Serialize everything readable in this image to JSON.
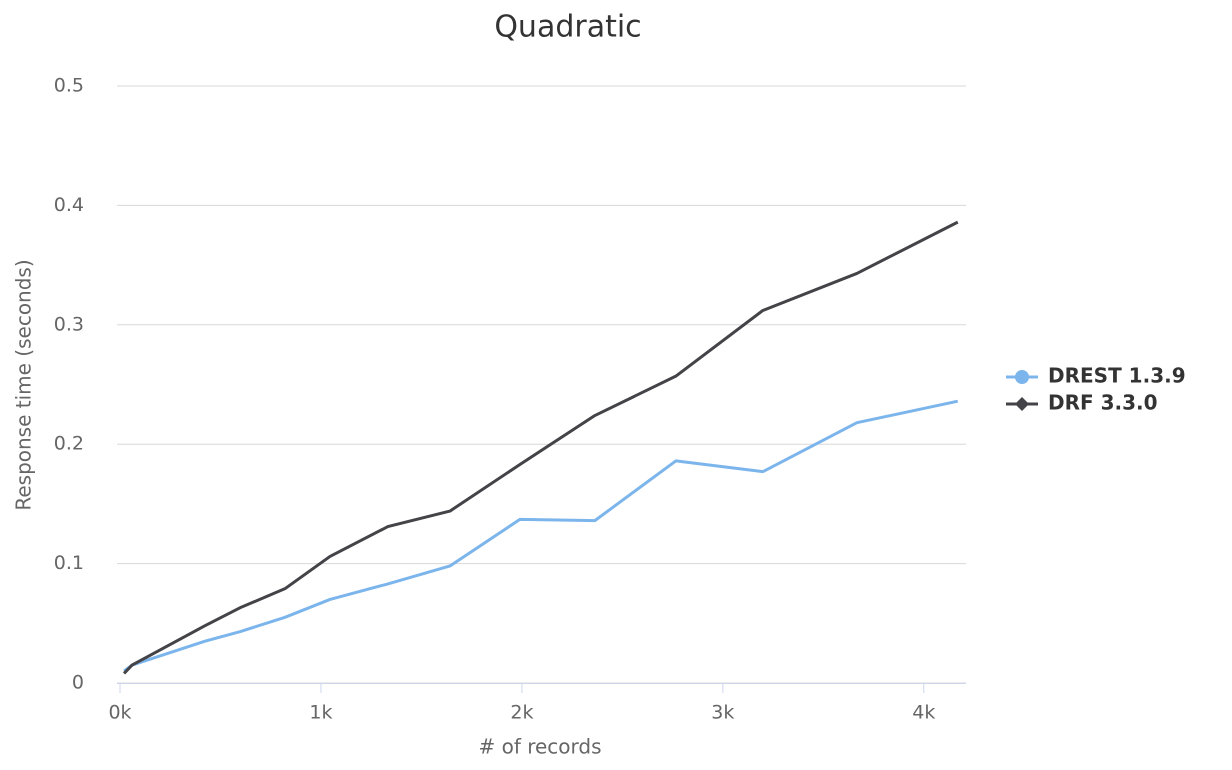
{
  "chart_data": {
    "type": "line",
    "title": "Quadratic",
    "x_label": "# of records",
    "y_label": "Response time (seconds)",
    "x": [
      20,
      60,
      423,
      597,
      821,
      1045,
      1333,
      1642,
      1990,
      2363,
      2766,
      3199,
      3667,
      4169
    ],
    "series": [
      {
        "name": "DREST 1.3.9",
        "color": "#7cb5ec",
        "marker": "circle",
        "values": [
          0.01,
          0.015,
          0.035,
          0.043,
          0.055,
          0.07,
          0.083,
          0.098,
          0.137,
          0.136,
          0.186,
          0.177,
          0.218,
          0.236
        ]
      },
      {
        "name": "DRF 3.3.0",
        "color": "#434348",
        "marker": "diamond",
        "values": [
          0.008,
          0.015,
          0.048,
          0.063,
          0.079,
          0.106,
          0.131,
          0.144,
          0.183,
          0.224,
          0.257,
          0.312,
          0.343,
          0.386
        ]
      }
    ],
    "xlim": [
      -15,
      4210
    ],
    "xticks": [
      {
        "value": 0,
        "label": "0k"
      },
      {
        "value": 1000,
        "label": "1k"
      },
      {
        "value": 2000,
        "label": "2k"
      },
      {
        "value": 3000,
        "label": "3k"
      },
      {
        "value": 4000,
        "label": "4k"
      }
    ],
    "ylim": [
      0,
      0.5
    ],
    "yticks": [
      0,
      0.1,
      0.2,
      0.3,
      0.4,
      0.5
    ],
    "grid": true,
    "legend": "right"
  }
}
